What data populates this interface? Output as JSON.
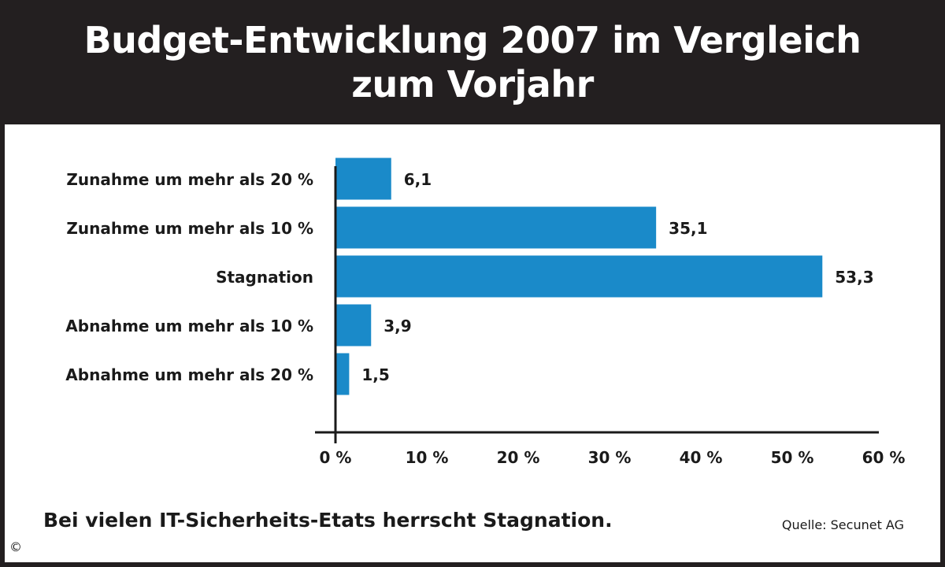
{
  "header": {
    "title_line1": "Budget-Entwicklung 2007 im Vergleich",
    "title_line2": "zum Vorjahr"
  },
  "colors": {
    "bar": "#1a8ac9",
    "header_bg": "#231f20",
    "text": "#1a1a1a"
  },
  "chart_data": {
    "type": "bar",
    "orientation": "horizontal",
    "title": "Budget-Entwicklung 2007 im Vergleich zum Vorjahr",
    "categories": [
      "Zunahme um mehr als 20 %",
      "Zunahme um mehr als 10 %",
      "Stagnation",
      "Abnahme um mehr als 10 %",
      "Abnahme um mehr als 20 %"
    ],
    "values": [
      6.1,
      35.1,
      53.3,
      3.9,
      1.5
    ],
    "value_labels": [
      "6,1",
      "35,1",
      "53,3",
      "3,9",
      "1,5"
    ],
    "xlim": [
      0,
      60
    ],
    "ticks": [
      0,
      10,
      20,
      30,
      40,
      50,
      60
    ],
    "tick_labels": [
      "0 %",
      "10 %",
      "20 %",
      "30 %",
      "40 %",
      "50 %",
      "60 %"
    ],
    "xlabel": "",
    "ylabel": "",
    "grid": false,
    "legend": "none"
  },
  "footer": {
    "subtitle": "Bei vielen IT-Sicherheits-Etats herrscht Stagnation.",
    "source": "Quelle: Secunet AG",
    "copyright": "©"
  }
}
